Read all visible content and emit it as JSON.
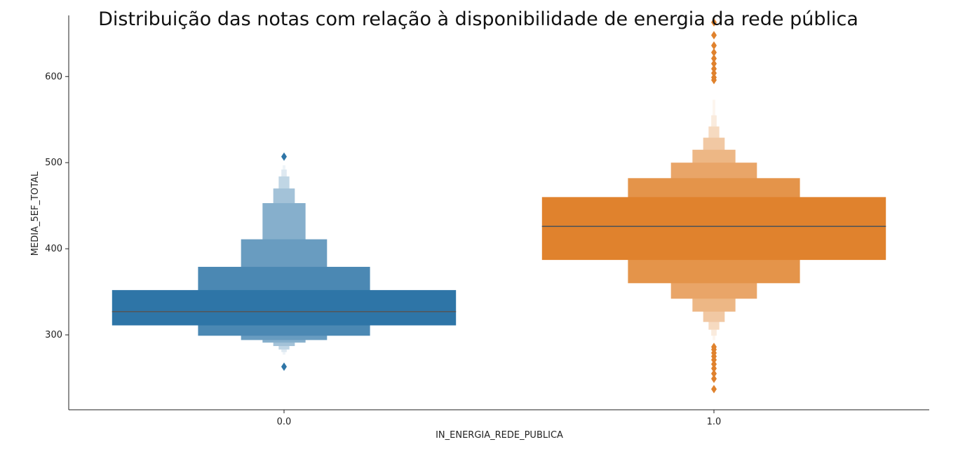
{
  "chart_data": {
    "type": "boxen",
    "title": "Distribuição das notas com relação à disponibilidade de energia da rede pública",
    "xlabel": "IN_ENERGIA_REDE_PUBLICA",
    "ylabel": "MEDIA_5EF_TOTAL",
    "categories": [
      "0.0",
      "1.0"
    ],
    "ylim": [
      213,
      671
    ],
    "yticks": [
      300,
      400,
      500,
      600
    ],
    "grid": false,
    "colors": {
      "0.0": "#2e75a7",
      "1.0": "#e0822d",
      "median": "#555555"
    },
    "series": [
      {
        "category": "0.0",
        "median": 327,
        "boxes": [
          {
            "lo": 311,
            "hi": 352,
            "width": 0.8
          },
          {
            "lo": 299,
            "hi": 379,
            "width": 0.4
          },
          {
            "lo": 294,
            "hi": 411,
            "width": 0.2
          },
          {
            "lo": 291,
            "hi": 453,
            "width": 0.1
          },
          {
            "lo": 287,
            "hi": 470,
            "width": 0.05
          },
          {
            "lo": 283,
            "hi": 484,
            "width": 0.025
          },
          {
            "lo": 280,
            "hi": 492,
            "width": 0.0125
          },
          {
            "lo": 277,
            "hi": 497,
            "width": 0.00625
          }
        ],
        "outliers": [
          507,
          263
        ]
      },
      {
        "category": "1.0",
        "median": 426,
        "boxes": [
          {
            "lo": 387,
            "hi": 460,
            "width": 0.8
          },
          {
            "lo": 360,
            "hi": 482,
            "width": 0.4
          },
          {
            "lo": 342,
            "hi": 500,
            "width": 0.2
          },
          {
            "lo": 327,
            "hi": 515,
            "width": 0.1
          },
          {
            "lo": 315,
            "hi": 529,
            "width": 0.05
          },
          {
            "lo": 306,
            "hi": 542,
            "width": 0.025
          },
          {
            "lo": 299,
            "hi": 555,
            "width": 0.0125
          },
          {
            "lo": 294,
            "hi": 573,
            "width": 0.00625
          }
        ],
        "outliers": [
          663,
          648,
          636,
          628,
          621,
          615,
          609,
          604,
          599,
          596,
          286,
          283,
          279,
          275,
          271,
          266,
          261,
          255,
          249,
          237
        ]
      }
    ]
  }
}
